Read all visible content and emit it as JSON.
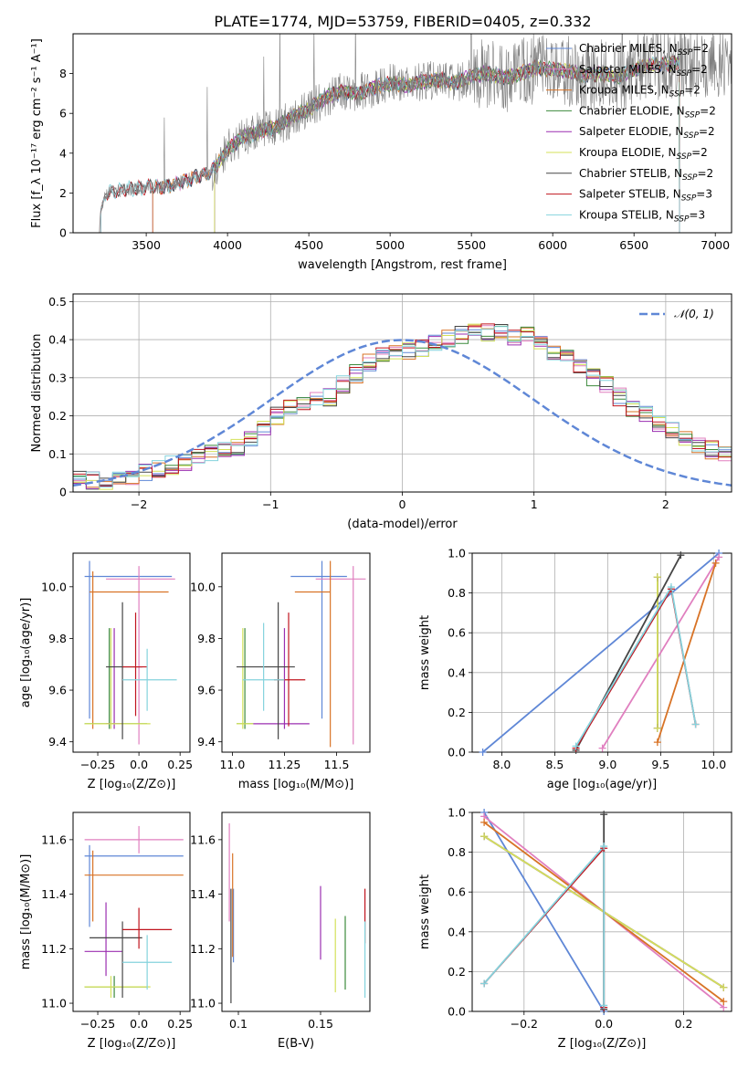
{
  "title": "PLATE=1774, MJD=53759, FIBERID=0405, z=0.332",
  "colors": {
    "chabrier_miles": "#5f87d6",
    "salpeter_miles": "#e07fbf",
    "kroupa_miles": "#d87326",
    "chabrier_elodie": "#3c8a3c",
    "salpeter_elodie": "#9b2fb0",
    "kroupa_elodie": "#d4e15a",
    "chabrier_stelib": "#454545",
    "salpeter_stelib": "#c0141e",
    "kroupa_stelib": "#84d3dd",
    "data": "#808080",
    "gauss": "#5f87d6",
    "grid": "#b0b0b0"
  },
  "chart_data": [
    {
      "id": "spectrum",
      "type": "line",
      "xlabel": "wavelength [Angstrom, rest frame]",
      "ylabel": "Flux [f_λ 10⁻¹⁷ erg cm⁻² s⁻¹ A⁻¹]",
      "xlim": [
        3050,
        7100
      ],
      "ylim": [
        0,
        10
      ],
      "xticks": [
        3500,
        4000,
        4500,
        5000,
        5500,
        6000,
        6500,
        7000
      ],
      "yticks": [
        0,
        2,
        4,
        6,
        8
      ],
      "grid": false,
      "legend_position": "top-right",
      "legend": [
        {
          "key": "chabrier_miles",
          "label": "Chabrier MILES, N",
          "sub": "SSP",
          "tail": "=2"
        },
        {
          "key": "salpeter_miles",
          "label": "Salpeter MILES, N",
          "sub": "SSP",
          "tail": "=2"
        },
        {
          "key": "kroupa_miles",
          "label": "Kroupa MILES, N",
          "sub": "SSP",
          "tail": "=2"
        },
        {
          "key": "chabrier_elodie",
          "label": "Chabrier ELODIE, N",
          "sub": "SSP",
          "tail": "=2"
        },
        {
          "key": "salpeter_elodie",
          "label": "Salpeter ELODIE, N",
          "sub": "SSP",
          "tail": "=2"
        },
        {
          "key": "kroupa_elodie",
          "label": "Kroupa ELODIE, N",
          "sub": "SSP",
          "tail": "=2"
        },
        {
          "key": "chabrier_stelib",
          "label": "Chabrier STELIB, N",
          "sub": "SSP",
          "tail": "=2"
        },
        {
          "key": "salpeter_stelib",
          "label": "Salpeter STELIB, N",
          "sub": "SSP",
          "tail": "=3"
        },
        {
          "key": "kroupa_stelib",
          "label": "Kroupa STELIB, N",
          "sub": "SSP",
          "tail": "=3"
        }
      ],
      "model_envelope": {
        "x": [
          3200,
          3250,
          3300,
          3400,
          3500,
          3600,
          3700,
          3800,
          3900,
          3950,
          4000,
          4100,
          4200,
          4300,
          4400,
          4500,
          4600,
          4700,
          4800,
          4900,
          5000,
          5100,
          5200,
          5300,
          5400,
          5500,
          5600,
          5700,
          5800,
          5900,
          6000,
          6100,
          6200,
          6300,
          6400,
          6500,
          6600,
          6700,
          6780
        ],
        "y": [
          0.3,
          2.0,
          2.1,
          2.2,
          2.3,
          2.3,
          2.5,
          2.8,
          3.0,
          3.6,
          4.2,
          4.8,
          5.1,
          5.3,
          5.8,
          6.2,
          6.8,
          7.1,
          7.0,
          7.3,
          7.5,
          7.4,
          7.6,
          7.7,
          7.5,
          7.9,
          8.0,
          7.8,
          8.0,
          8.3,
          8.2,
          8.1,
          7.9,
          8.0,
          7.8,
          8.2,
          8.4,
          8.5,
          8.6
        ]
      },
      "model_starts": {
        "chabrier_miles": 3540,
        "salpeter_miles": 3540,
        "kroupa_miles": 3540,
        "chabrier_elodie": 3920,
        "salpeter_elodie": 3920,
        "kroupa_elodie": 3920,
        "chabrier_stelib": 3220,
        "salpeter_stelib": 3220,
        "kroupa_stelib": 3220
      }
    },
    {
      "id": "residuals",
      "type": "step",
      "xlabel": "(data-model)/error",
      "ylabel": "Normed distribution",
      "xlim": [
        -2.5,
        2.5
      ],
      "ylim": [
        0,
        0.52
      ],
      "xticks": [
        -2,
        -1,
        0,
        1,
        2
      ],
      "yticks": [
        0.0,
        0.1,
        0.2,
        0.3,
        0.4,
        0.5
      ],
      "grid": true,
      "legend_position": "top-right",
      "gauss_label": "𝒩(0, 1)",
      "bin_width": 0.1,
      "bin_start": -2.5,
      "base_profile": [
        0.03,
        0.03,
        0.03,
        0.035,
        0.04,
        0.05,
        0.06,
        0.07,
        0.08,
        0.09,
        0.1,
        0.11,
        0.12,
        0.14,
        0.17,
        0.2,
        0.22,
        0.23,
        0.24,
        0.25,
        0.28,
        0.31,
        0.34,
        0.36,
        0.37,
        0.37,
        0.38,
        0.39,
        0.4,
        0.41,
        0.43,
        0.42,
        0.42,
        0.41,
        0.41,
        0.4,
        0.37,
        0.35,
        0.33,
        0.3,
        0.28,
        0.25,
        0.22,
        0.2,
        0.18,
        0.16,
        0.14,
        0.12,
        0.11,
        0.1
      ]
    },
    {
      "id": "age_vs_Z",
      "type": "errorbar",
      "xlabel": "Z [log₁₀(Z/Z⊙)]",
      "ylabel": "age  [log₁₀(age/yr)]",
      "xlim": [
        -0.4,
        0.31
      ],
      "ylim": [
        9.36,
        10.13
      ],
      "xticks": [
        -0.25,
        0.0,
        0.25
      ],
      "yticks": [
        9.4,
        9.6,
        9.8,
        10.0
      ],
      "grid": false,
      "points": [
        {
          "key": "chabrier_miles",
          "x": -0.3,
          "y": 10.04,
          "x0": -0.33,
          "x1": 0.2,
          "y0": 9.49,
          "y1": 10.1
        },
        {
          "key": "salpeter_miles",
          "x": 0.0,
          "y": 10.03,
          "x0": -0.2,
          "x1": 0.22,
          "y0": 9.39,
          "y1": 10.08
        },
        {
          "key": "kroupa_miles",
          "x": -0.28,
          "y": 9.98,
          "x0": -0.3,
          "x1": 0.18,
          "y0": 9.45,
          "y1": 10.06
        },
        {
          "key": "chabrier_elodie",
          "x": -0.18,
          "y": 9.47,
          "x0": -0.33,
          "x1": 0.05,
          "y0": 9.45,
          "y1": 9.84
        },
        {
          "key": "salpeter_elodie",
          "x": -0.15,
          "y": 9.47,
          "x0": -0.2,
          "x1": -0.1,
          "y0": 9.45,
          "y1": 9.84
        },
        {
          "key": "kroupa_elodie",
          "x": -0.17,
          "y": 9.47,
          "x0": -0.33,
          "x1": 0.07,
          "y0": 9.45,
          "y1": 9.84
        },
        {
          "key": "chabrier_stelib",
          "x": -0.1,
          "y": 9.69,
          "x0": -0.2,
          "x1": 0.02,
          "y0": 9.41,
          "y1": 9.94
        },
        {
          "key": "salpeter_stelib",
          "x": -0.02,
          "y": 9.69,
          "x0": -0.1,
          "x1": 0.05,
          "y0": 9.5,
          "y1": 9.9
        },
        {
          "key": "kroupa_stelib",
          "x": 0.05,
          "y": 9.64,
          "x0": -0.1,
          "x1": 0.23,
          "y0": 9.52,
          "y1": 9.76
        }
      ]
    },
    {
      "id": "age_vs_mass",
      "type": "errorbar",
      "xlabel": "mass [log₁₀(M/M⊙)]",
      "ylabel": "",
      "xlim": [
        10.95,
        11.66
      ],
      "ylim": [
        9.36,
        10.13
      ],
      "xticks": [
        11.0,
        11.25,
        11.5
      ],
      "yticks": [
        9.4,
        9.6,
        9.8,
        10.0
      ],
      "grid": false,
      "points": [
        {
          "key": "chabrier_miles",
          "x": 11.43,
          "y": 10.04,
          "x0": 11.28,
          "x1": 11.55,
          "y0": 9.49,
          "y1": 10.1
        },
        {
          "key": "salpeter_miles",
          "x": 11.58,
          "y": 10.03,
          "x0": 11.4,
          "x1": 11.64,
          "y0": 9.39,
          "y1": 10.08
        },
        {
          "key": "kroupa_miles",
          "x": 11.47,
          "y": 9.98,
          "x0": 11.3,
          "x1": 11.47,
          "y0": 9.38,
          "y1": 10.1
        },
        {
          "key": "chabrier_elodie",
          "x": 11.06,
          "y": 9.47,
          "x0": 11.02,
          "x1": 11.1,
          "y0": 9.45,
          "y1": 9.84
        },
        {
          "key": "salpeter_elodie",
          "x": 11.25,
          "y": 9.47,
          "x0": 11.1,
          "x1": 11.37,
          "y0": 9.45,
          "y1": 9.84
        },
        {
          "key": "kroupa_elodie",
          "x": 11.05,
          "y": 9.47,
          "x0": 11.02,
          "x1": 11.1,
          "y0": 9.45,
          "y1": 9.84
        },
        {
          "key": "chabrier_stelib",
          "x": 11.22,
          "y": 9.69,
          "x0": 11.02,
          "x1": 11.3,
          "y0": 9.41,
          "y1": 9.94
        },
        {
          "key": "salpeter_stelib",
          "x": 11.27,
          "y": 9.64,
          "x0": 11.2,
          "x1": 11.35,
          "y0": 9.46,
          "y1": 9.9
        },
        {
          "key": "kroupa_stelib",
          "x": 11.15,
          "y": 9.64,
          "x0": 11.05,
          "x1": 11.25,
          "y0": 9.52,
          "y1": 9.86
        }
      ]
    },
    {
      "id": "weight_vs_age",
      "type": "line",
      "xlabel": "age  [log₁₀(age/yr)]",
      "ylabel": "mass weight",
      "xlim": [
        7.72,
        10.17
      ],
      "ylim": [
        0,
        1
      ],
      "xticks": [
        8.0,
        8.5,
        9.0,
        9.5,
        10.0
      ],
      "yticks": [
        0.0,
        0.2,
        0.4,
        0.6,
        0.8,
        1.0
      ],
      "grid": true,
      "series": [
        {
          "key": "chabrier_miles",
          "x": [
            7.82,
            10.05
          ],
          "y": [
            0.0,
            1.0
          ]
        },
        {
          "key": "salpeter_miles",
          "x": [
            8.95,
            10.05
          ],
          "y": [
            0.02,
            0.98
          ]
        },
        {
          "key": "kroupa_miles",
          "x": [
            9.47,
            10.02
          ],
          "y": [
            0.05,
            0.95
          ]
        },
        {
          "key": "chabrier_elodie",
          "x": [
            9.47,
            9.47
          ],
          "y": [
            0.12,
            0.88
          ]
        },
        {
          "key": "salpeter_elodie",
          "x": [
            9.47,
            9.47
          ],
          "y": [
            0.12,
            0.88
          ]
        },
        {
          "key": "kroupa_elodie",
          "x": [
            9.47,
            9.47
          ],
          "y": [
            0.12,
            0.88
          ]
        },
        {
          "key": "chabrier_stelib",
          "x": [
            8.7,
            9.69
          ],
          "y": [
            0.01,
            0.99
          ]
        },
        {
          "key": "salpeter_stelib",
          "x": [
            8.7,
            9.6,
            9.83
          ],
          "y": [
            0.02,
            0.82,
            0.14
          ]
        },
        {
          "key": "kroupa_stelib",
          "x": [
            8.7,
            9.6,
            9.83
          ],
          "y": [
            0.03,
            0.83,
            0.14
          ]
        }
      ]
    },
    {
      "id": "mass_vs_Z",
      "type": "errorbar",
      "xlabel": "Z [log₁₀(Z/Z⊙)]",
      "ylabel": "mass [log₁₀(M/M⊙)]",
      "xlim": [
        -0.4,
        0.31
      ],
      "ylim": [
        10.97,
        11.7
      ],
      "xticks": [
        -0.25,
        0.0,
        0.25
      ],
      "yticks": [
        11.0,
        11.2,
        11.4,
        11.6
      ],
      "grid": false,
      "points": [
        {
          "key": "chabrier_miles",
          "x": -0.3,
          "y": 11.54,
          "x0": -0.33,
          "x1": 0.27,
          "y0": 11.28,
          "y1": 11.58
        },
        {
          "key": "salpeter_miles",
          "x": 0.0,
          "y": 11.6,
          "x0": -0.33,
          "x1": 0.27,
          "y0": 11.55,
          "y1": 11.65
        },
        {
          "key": "kroupa_miles",
          "x": -0.28,
          "y": 11.47,
          "x0": -0.33,
          "x1": 0.27,
          "y0": 11.3,
          "y1": 11.56
        },
        {
          "key": "chabrier_elodie",
          "x": -0.15,
          "y": 11.06,
          "x0": -0.33,
          "x1": 0.05,
          "y0": 11.02,
          "y1": 11.1
        },
        {
          "key": "salpeter_elodie",
          "x": -0.2,
          "y": 11.19,
          "x0": -0.33,
          "x1": -0.1,
          "y0": 11.1,
          "y1": 11.37
        },
        {
          "key": "kroupa_elodie",
          "x": -0.17,
          "y": 11.06,
          "x0": -0.33,
          "x1": 0.07,
          "y0": 11.02,
          "y1": 11.1
        },
        {
          "key": "chabrier_stelib",
          "x": -0.1,
          "y": 11.24,
          "x0": -0.3,
          "x1": 0.02,
          "y0": 11.02,
          "y1": 11.3
        },
        {
          "key": "salpeter_stelib",
          "x": 0.0,
          "y": 11.27,
          "x0": -0.1,
          "x1": 0.2,
          "y0": 11.2,
          "y1": 11.35
        },
        {
          "key": "kroupa_stelib",
          "x": 0.05,
          "y": 11.15,
          "x0": -0.1,
          "x1": 0.2,
          "y0": 11.05,
          "y1": 11.25
        }
      ]
    },
    {
      "id": "mass_vs_ebv",
      "type": "errorbar",
      "xlabel": "E(B-V)",
      "ylabel": "",
      "xlim": [
        0.09,
        0.18
      ],
      "ylim": [
        10.97,
        11.7
      ],
      "xticks": [
        0.1,
        0.15
      ],
      "yticks": [
        11.0,
        11.2,
        11.4,
        11.6
      ],
      "grid": false,
      "points": [
        {
          "key": "chabrier_miles",
          "x": 0.097,
          "y": 11.28,
          "x0": 0.097,
          "x1": 0.097,
          "y0": 11.15,
          "y1": 11.42
        },
        {
          "key": "salpeter_miles",
          "x": 0.0945,
          "y": 11.48,
          "x0": 0.0945,
          "x1": 0.0945,
          "y0": 11.3,
          "y1": 11.66
        },
        {
          "key": "kroupa_miles",
          "x": 0.0965,
          "y": 11.37,
          "x0": 0.0965,
          "x1": 0.0965,
          "y0": 11.17,
          "y1": 11.55
        },
        {
          "key": "chabrier_elodie",
          "x": 0.165,
          "y": 11.18,
          "x0": 0.165,
          "x1": 0.165,
          "y0": 11.05,
          "y1": 11.32
        },
        {
          "key": "salpeter_elodie",
          "x": 0.15,
          "y": 11.3,
          "x0": 0.15,
          "x1": 0.15,
          "y0": 11.16,
          "y1": 11.43
        },
        {
          "key": "kroupa_elodie",
          "x": 0.159,
          "y": 11.17,
          "x0": 0.159,
          "x1": 0.159,
          "y0": 11.04,
          "y1": 11.31
        },
        {
          "key": "chabrier_stelib",
          "x": 0.0955,
          "y": 11.21,
          "x0": 0.0955,
          "x1": 0.0955,
          "y0": 11.0,
          "y1": 11.42
        },
        {
          "key": "salpeter_stelib",
          "x": 0.177,
          "y": 11.33,
          "x0": 0.177,
          "x1": 0.177,
          "y0": 11.22,
          "y1": 11.42
        },
        {
          "key": "kroupa_stelib",
          "x": 0.177,
          "y": 11.16,
          "x0": 0.177,
          "x1": 0.177,
          "y0": 11.02,
          "y1": 11.3
        }
      ]
    },
    {
      "id": "weight_vs_Z",
      "type": "line",
      "xlabel": "Z [log₁₀(Z/Z⊙)]",
      "ylabel": "mass weight",
      "xlim": [
        -0.33,
        0.32
      ],
      "ylim": [
        0,
        1
      ],
      "xticks": [
        -0.2,
        0.0,
        0.2
      ],
      "yticks": [
        0.0,
        0.2,
        0.4,
        0.6,
        0.8,
        1.0
      ],
      "grid": true,
      "series": [
        {
          "key": "chabrier_miles",
          "x": [
            -0.3,
            0.0
          ],
          "y": [
            1.0,
            0.0
          ]
        },
        {
          "key": "salpeter_miles",
          "x": [
            -0.3,
            0.3
          ],
          "y": [
            0.98,
            0.02
          ]
        },
        {
          "key": "kroupa_miles",
          "x": [
            -0.3,
            0.3
          ],
          "y": [
            0.95,
            0.05
          ]
        },
        {
          "key": "chabrier_elodie",
          "x": [
            -0.3,
            0.3
          ],
          "y": [
            0.88,
            0.12
          ]
        },
        {
          "key": "salpeter_elodie",
          "x": [
            -0.3,
            0.3
          ],
          "y": [
            0.88,
            0.12
          ]
        },
        {
          "key": "kroupa_elodie",
          "x": [
            -0.3,
            0.3
          ],
          "y": [
            0.88,
            0.12
          ]
        },
        {
          "key": "chabrier_stelib",
          "x": [
            0.0,
            0.0
          ],
          "y": [
            0.01,
            0.99
          ]
        },
        {
          "key": "salpeter_stelib",
          "x": [
            -0.3,
            0.0,
            0.0
          ],
          "y": [
            0.14,
            0.82,
            0.02
          ]
        },
        {
          "key": "kroupa_stelib",
          "x": [
            -0.3,
            0.0,
            0.0
          ],
          "y": [
            0.14,
            0.83,
            0.03
          ]
        }
      ]
    }
  ]
}
